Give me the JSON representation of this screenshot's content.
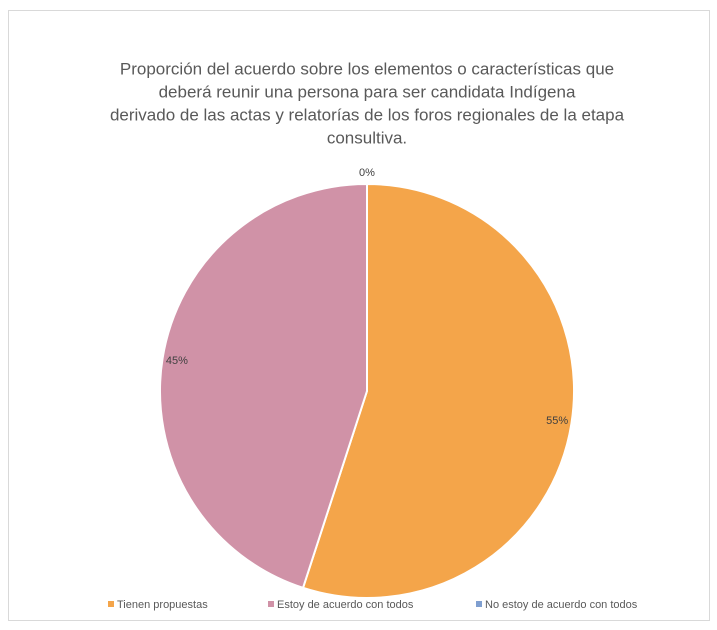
{
  "chart_data": {
    "type": "pie",
    "title": [
      "Proporción del acuerdo sobre los elementos o características que",
      "deberá reunir una persona para ser candidata Indígena",
      "derivado de las actas y relatorías de los foros regionales de la etapa",
      "consultiva."
    ],
    "categories": [
      "Tienen propuestas",
      "Estoy de acuerdo con todos",
      "No estoy de acuerdo con todos"
    ],
    "values": [
      55,
      45,
      0
    ],
    "value_labels": [
      "55%",
      "45%",
      "0%"
    ],
    "colors": [
      "#f4a54a",
      "#d092a7",
      "#7f9fd0"
    ],
    "legend": "bottom"
  }
}
